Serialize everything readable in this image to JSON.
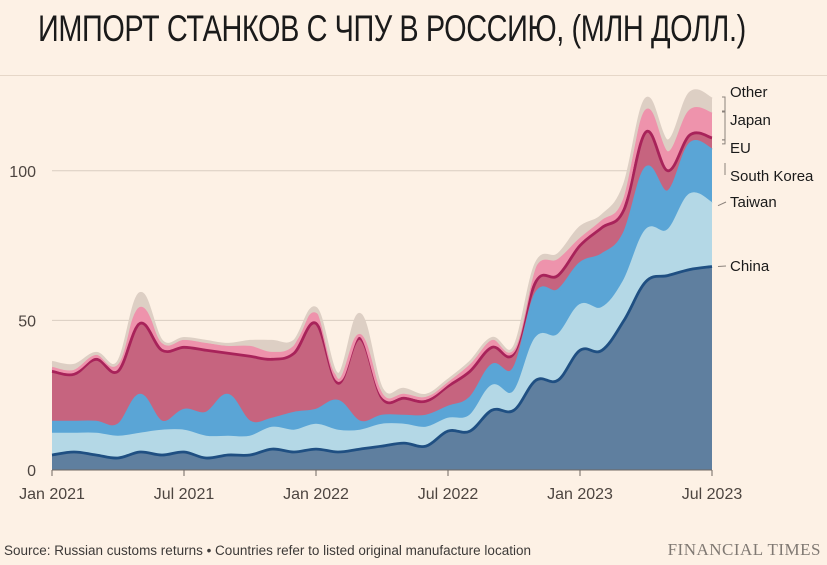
{
  "chart_data": {
    "type": "area",
    "stacked": true,
    "title": "ИМПОРТ СТАНКОВ С ЧПУ В РОССИЮ, (МЛН ДОЛЛ.)",
    "xlabel": "",
    "ylabel": "",
    "ylim": [
      0,
      125
    ],
    "yticks": [
      "0",
      "50",
      "100"
    ],
    "ytick_values": [
      0,
      50,
      100
    ],
    "xticks": [
      "Jan 2021",
      "Jul 2021",
      "Jan 2022",
      "Jul 2022",
      "Jan 2023",
      "Jul 2023"
    ],
    "xtick_index": [
      0,
      6,
      12,
      18,
      24,
      30
    ],
    "months": [
      "2021-01",
      "2021-02",
      "2021-03",
      "2021-04",
      "2021-05",
      "2021-06",
      "2021-07",
      "2021-08",
      "2021-09",
      "2021-10",
      "2021-11",
      "2021-12",
      "2022-01",
      "2022-02",
      "2022-03",
      "2022-04",
      "2022-05",
      "2022-06",
      "2022-07",
      "2022-08",
      "2022-09",
      "2022-10",
      "2022-11",
      "2022-12",
      "2023-01",
      "2023-02",
      "2023-03",
      "2023-04",
      "2023-05",
      "2023-06",
      "2023-07"
    ],
    "series": [
      {
        "name": "China",
        "color": "#5f7f9f",
        "line": "#1f4f82",
        "values": [
          5,
          6,
          5,
          4,
          6,
          5,
          6,
          4,
          5,
          5,
          7,
          6,
          7,
          6,
          7,
          8,
          9,
          8,
          13,
          13,
          20,
          20,
          30,
          30,
          40,
          40,
          50,
          63,
          65,
          67,
          68
        ]
      },
      {
        "name": "Taiwan",
        "color": "#b4d8e6",
        "line": "#b4d8e6",
        "values": [
          7,
          6,
          7,
          7,
          6,
          8,
          7,
          7,
          6,
          6,
          7,
          7,
          8,
          7,
          6,
          7,
          6,
          6,
          4,
          5,
          8,
          6,
          14,
          15,
          15,
          14,
          13,
          17,
          15,
          25,
          21
        ]
      },
      {
        "name": "South Korea",
        "color": "#5aa5d6",
        "line": "#5aa5d6",
        "values": [
          4,
          4,
          4,
          4,
          13,
          3,
          7,
          8,
          14,
          5,
          3,
          6,
          5,
          10,
          3,
          3,
          3,
          4,
          4,
          6,
          7,
          8,
          15,
          15,
          14,
          18,
          16,
          21,
          13,
          17,
          18
        ]
      },
      {
        "name": "EU",
        "color": "#c6647f",
        "line": "#a8235a",
        "values": [
          17,
          16,
          21,
          18,
          24,
          24,
          21,
          21,
          14,
          22,
          20,
          20,
          29,
          6,
          28,
          6,
          6,
          5,
          7,
          9,
          6,
          5,
          4,
          5,
          6,
          9,
          8,
          12,
          7,
          3,
          4
        ]
      },
      {
        "name": "Japan",
        "color": "#ee93ac",
        "line": "#ee93ac",
        "values": [
          1,
          1,
          1,
          2,
          5,
          2,
          2,
          2,
          2,
          3,
          2,
          2,
          3,
          1,
          1,
          1,
          1,
          1,
          1,
          2,
          2,
          1,
          4,
          5,
          2,
          2,
          3,
          7,
          6,
          8,
          8
        ]
      },
      {
        "name": "Other",
        "color": "#ddcfc4",
        "line": "#ddcfc4",
        "values": [
          2,
          2,
          1,
          1,
          5,
          1,
          1,
          1,
          1,
          2,
          4,
          2,
          2,
          2,
          7,
          2,
          2,
          1,
          1,
          1,
          1,
          1,
          2,
          2,
          4,
          2,
          5,
          4,
          4,
          6,
          5
        ]
      }
    ],
    "legend": [
      "Other",
      "Japan",
      "EU",
      "South Korea",
      "Taiwan",
      "China"
    ],
    "legend_placement": "right"
  },
  "source": "Source: Russian customs returns • Countries refer to listed original manufacture location",
  "brand": "FINANCIAL TIMES"
}
